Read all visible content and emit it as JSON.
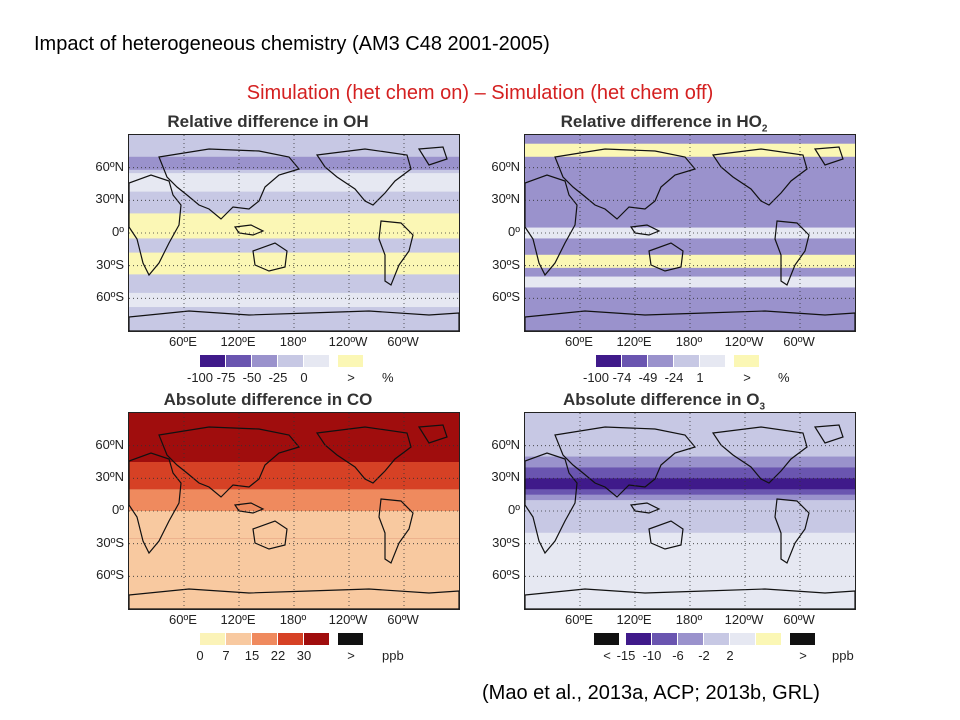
{
  "header": {
    "title": "Impact of heterogeneous chemistry (AM3 C48 2001-2005)",
    "subtitle": "Simulation (het chem on) – Simulation (het chem off)",
    "subtitle_color": "#d42020"
  },
  "lat_labels": [
    "60ºN",
    "30ºN",
    "0º",
    "30ºS",
    "60ºS"
  ],
  "lon_labels": [
    "60ºE",
    "120ºE",
    "180º",
    "120ºW",
    "60ºW"
  ],
  "panels": [
    {
      "id": "oh",
      "title_prefix": "Relative difference in OH",
      "title_sub": "",
      "unit": "%",
      "ticks": [
        "-100",
        "-75",
        "-50",
        "-25",
        "0",
        ">"
      ],
      "colors": [
        "#3f1a8a",
        "#6a55b0",
        "#9a92cc",
        "#c7c8e4",
        "#e6e8f2",
        "#fbf7b5"
      ],
      "background_color": "#c7c8e4"
    },
    {
      "id": "ho2",
      "title_prefix": "Relative difference in HO",
      "title_sub": "2",
      "unit": "%",
      "ticks": [
        "-100",
        "-74",
        "-49",
        "-24",
        "1",
        ">"
      ],
      "colors": [
        "#3f1a8a",
        "#6a55b0",
        "#9a92cc",
        "#c7c8e4",
        "#e6e8f2",
        "#fbf7b5"
      ],
      "background_color": "#9a92cc"
    },
    {
      "id": "co",
      "title_prefix": "Absolute difference in CO",
      "title_sub": "",
      "unit": "ppb",
      "ticks": [
        "0",
        "7",
        "15",
        "22",
        "30",
        ">"
      ],
      "colors": [
        "#fbf3b8",
        "#f8c9a0",
        "#ef8a5e",
        "#d64125",
        "#a00d0d",
        "#111111"
      ],
      "background_color": "#a00d0d"
    },
    {
      "id": "o3",
      "title_prefix": "Absolute difference in O",
      "title_sub": "3",
      "unit": "ppb",
      "ticks": [
        "<",
        "-15",
        "-10",
        "-6",
        "-2",
        "2",
        ">"
      ],
      "colors": [
        "#111111",
        "#3f1a8a",
        "#6a55b0",
        "#9a92cc",
        "#c7c8e4",
        "#e6e8f2",
        "#fbf7b5",
        "#111111"
      ],
      "background_color": "#c7c8e4"
    }
  ],
  "citation": "(Mao et al., 2013a, ACP; 2013b, GRL)"
}
